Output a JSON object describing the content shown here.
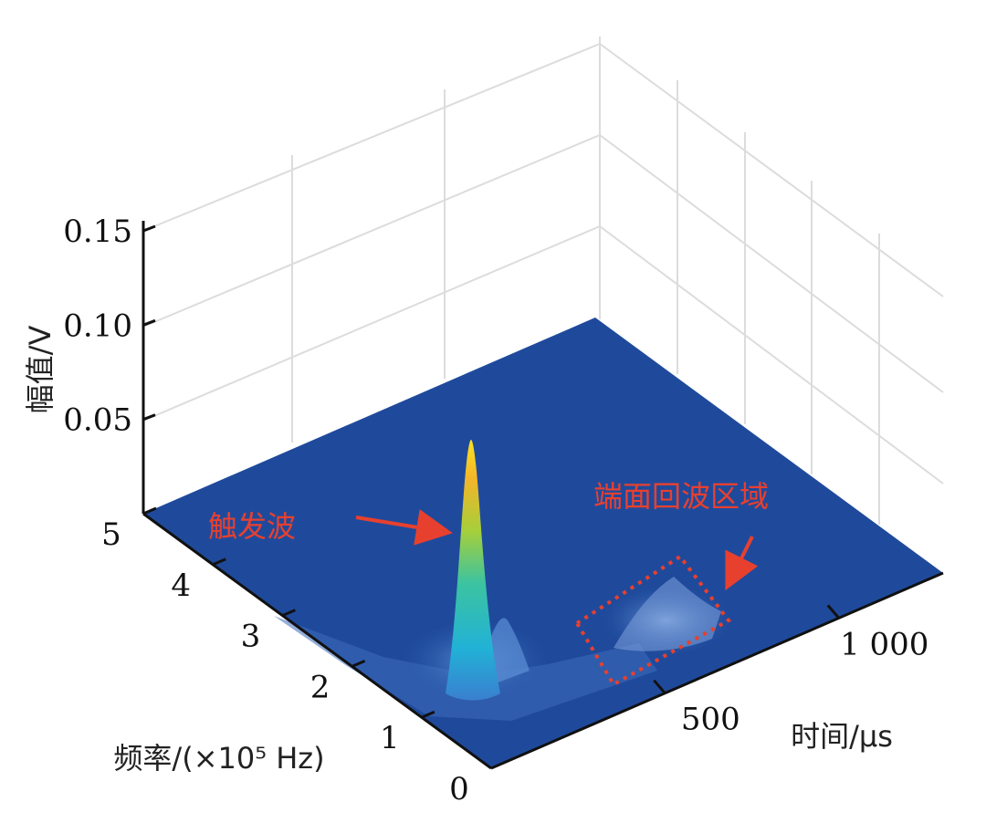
{
  "chart_data": {
    "type": "surface",
    "title": "",
    "xlabel": "时间/μs",
    "ylabel": "频率/(×10⁵ Hz)",
    "zlabel": "幅值/V",
    "xlim": [
      0,
      1300
    ],
    "ylim": [
      0,
      5
    ],
    "zlim": [
      0,
      0.15
    ],
    "x_ticks": [
      {
        "value": 500,
        "label": "500"
      },
      {
        "value": 1000,
        "label": "1 000"
      }
    ],
    "y_ticks": [
      {
        "value": 0,
        "label": "0"
      },
      {
        "value": 1,
        "label": "1"
      },
      {
        "value": 2,
        "label": "2"
      },
      {
        "value": 3,
        "label": "3"
      },
      {
        "value": 4,
        "label": "4"
      },
      {
        "value": 5,
        "label": "5"
      }
    ],
    "z_ticks": [
      {
        "value": 0.05,
        "label": "0.05"
      },
      {
        "value": 0.1,
        "label": "0.10"
      },
      {
        "value": 0.15,
        "label": "0.15"
      }
    ],
    "grid": true,
    "colormap": "parula",
    "features": [
      {
        "name": "trigger_peak",
        "time_us": 130,
        "freq_1e5Hz": 2.0,
        "amplitude_V": 0.125
      },
      {
        "name": "end_echo",
        "time_us": 860,
        "freq_1e5Hz": 1.5,
        "amplitude_V": 0.012
      }
    ],
    "annotations": [
      {
        "id": "trigger",
        "text": "触发波",
        "color": "#e8402e"
      },
      {
        "id": "echo",
        "text": "端面回波区域",
        "color": "#e8402e"
      }
    ]
  },
  "colors": {
    "surface_base": "#1f4a9c",
    "annotation": "#e8402e",
    "grid": "#dcdcdc",
    "axis": "#111111"
  }
}
